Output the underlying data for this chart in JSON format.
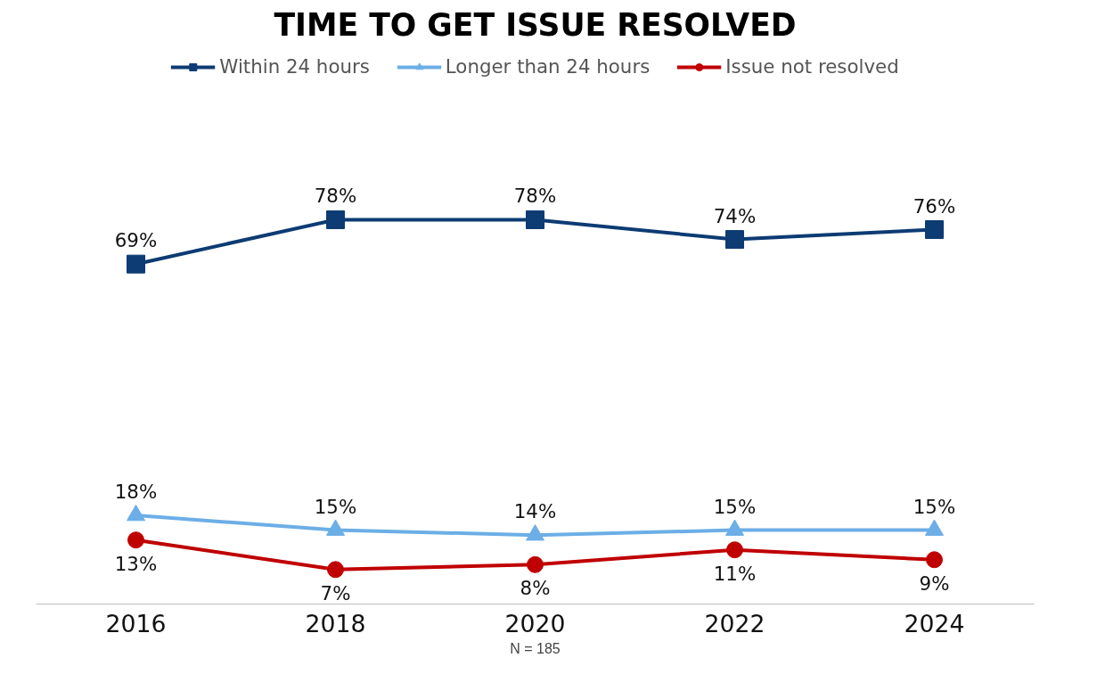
{
  "chart_data": {
    "type": "line",
    "title": "TIME TO GET ISSUE RESOLVED",
    "categories": [
      "2016",
      "2018",
      "2020",
      "2022",
      "2024"
    ],
    "series": [
      {
        "name": "Within 24 hours",
        "color": "#0d3b73",
        "values": [
          69,
          78,
          78,
          74,
          76
        ],
        "value_labels": [
          "69%",
          "78%",
          "78%",
          "74%",
          "76%"
        ],
        "marker": "square"
      },
      {
        "name": "Longer than 24 hours",
        "color": "#6caee6",
        "values": [
          18,
          15,
          14,
          15,
          15
        ],
        "value_labels": [
          "18%",
          "15%",
          "14%",
          "15%",
          "15%"
        ],
        "marker": "triangle"
      },
      {
        "name": "Issue not resolved",
        "color": "#c00000",
        "values": [
          13,
          7,
          8,
          11,
          9
        ],
        "value_labels": [
          "13%",
          "7%",
          "8%",
          "11%",
          "9%"
        ],
        "marker": "circle"
      }
    ],
    "legend": "top",
    "grid": false,
    "line_style": "solid",
    "annotations": [
      "N = 185"
    ]
  }
}
